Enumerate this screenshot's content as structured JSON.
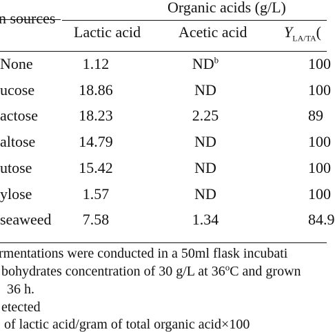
{
  "table": {
    "group_header": "Organic acids (g/L)",
    "row_header": "n sources",
    "columns": {
      "lactic": "Lactic acid",
      "acetic": "Acetic acid",
      "yield_main": "Y",
      "yield_sub": "LA/TA",
      "yield_tail": "("
    },
    "rows": [
      {
        "source": "None",
        "lactic": "1.12",
        "acetic": "ND",
        "acetic_sup": "b",
        "yield": "100"
      },
      {
        "source": "ucose",
        "lactic": "18.86",
        "acetic": "ND",
        "acetic_sup": "",
        "yield": "100"
      },
      {
        "source": "actose",
        "lactic": "18.23",
        "acetic": "2.25",
        "acetic_sup": "",
        "yield": "89"
      },
      {
        "source": "altose",
        "lactic": "14.79",
        "acetic": "ND",
        "acetic_sup": "",
        "yield": "100"
      },
      {
        "source": "utose",
        "lactic": "15.42",
        "acetic": "ND",
        "acetic_sup": "",
        "yield": "100"
      },
      {
        "source": "ylose",
        "lactic": "1.57",
        "acetic": "ND",
        "acetic_sup": "",
        "yield": "100"
      },
      {
        "source": "seaweed",
        "lactic": "7.58",
        "acetic": "1.34",
        "acetic_sup": "",
        "yield": "84.9"
      }
    ]
  },
  "footnotes": {
    "line1": "rmentations were conducted in a 50ml flask incubati",
    "line2_a": "bohydrates concentration of 30 g/L at 36",
    "line2_sup": "o",
    "line2_b": "C and grown",
    "line3": "36 h.",
    "line4": "etected",
    "line5": "of lactic acid/gram of total organic acid×100"
  }
}
